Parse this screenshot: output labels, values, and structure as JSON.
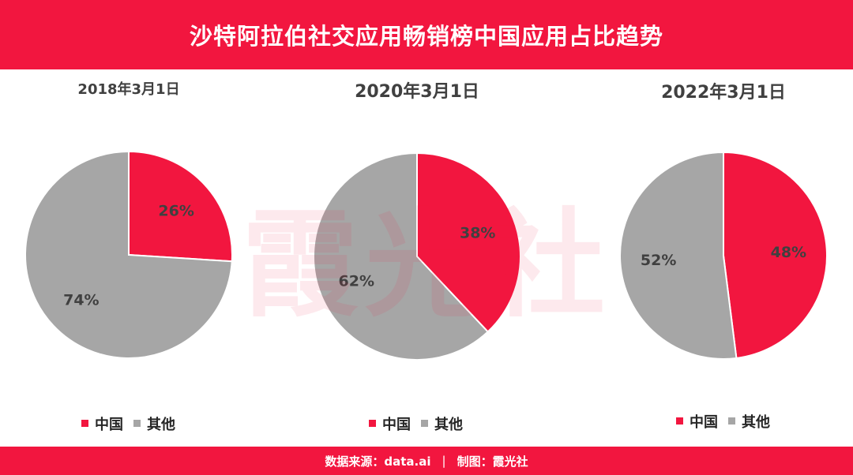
{
  "header": {
    "title": "沙特阿拉伯社交应用畅销榜中国应用占比趋势"
  },
  "watermark": "霞光社",
  "footer": {
    "source": "数据来源：data.ai",
    "separator": "|",
    "credit": "制图：霞光社"
  },
  "colors": {
    "china": "#f2163f",
    "other": "#a6a6a6",
    "header_bg": "#f2163f"
  },
  "chart_data": [
    {
      "type": "pie",
      "title": "2018年3月1日",
      "categories": [
        "中国",
        "其他"
      ],
      "values": [
        26,
        74
      ],
      "data_labels": [
        "26%",
        "74%"
      ],
      "legend": [
        "中国",
        "其他"
      ],
      "legend_position": "bottom"
    },
    {
      "type": "pie",
      "title": "2020年3月1日",
      "categories": [
        "中国",
        "其他"
      ],
      "values": [
        38,
        62
      ],
      "data_labels": [
        "38%",
        "62%"
      ],
      "legend": [
        "中国",
        "其他"
      ],
      "legend_position": "bottom"
    },
    {
      "type": "pie",
      "title": "2022年3月1日",
      "categories": [
        "中国",
        "其他"
      ],
      "values": [
        48,
        52
      ],
      "data_labels": [
        "48%",
        "52%"
      ],
      "legend": [
        "中国",
        "其他"
      ],
      "legend_position": "bottom"
    }
  ]
}
